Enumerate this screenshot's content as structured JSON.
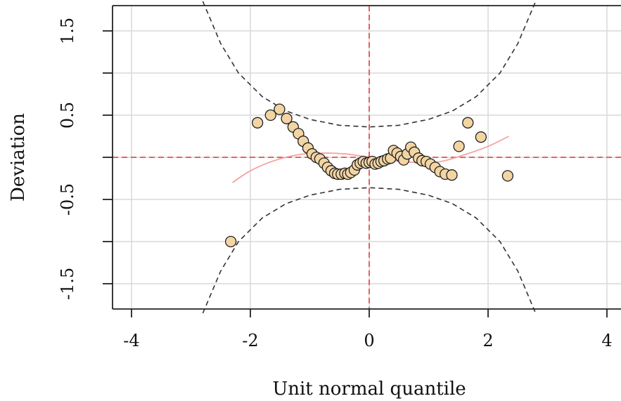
{
  "chart_data": {
    "type": "scatter",
    "title": "",
    "xlabel": "Unit normal quantile",
    "ylabel": "Deviation",
    "xlim": [
      -4,
      4
    ],
    "ylim": [
      -1.85,
      1.85
    ],
    "x_ticks": [
      -4,
      -2,
      0,
      2,
      4
    ],
    "x_tick_labels": [
      "-4",
      "-2",
      "0",
      "2",
      "4"
    ],
    "y_ticks": [
      -1.5,
      -0.5,
      0.5,
      1.5
    ],
    "y_tick_labels": [
      "-1.5",
      "-0.5",
      "0.5",
      "1.5"
    ],
    "y_gridlines": [
      -1.5,
      -1.0,
      -0.5,
      0.0,
      0.5,
      1.0,
      1.5
    ],
    "grid": true,
    "reference_line_y": 0,
    "reference_line_x": 0,
    "series": [
      {
        "values": [
          {
            "x": -2.33,
            "y": -1.0
          },
          {
            "x": -1.88,
            "y": 0.41
          },
          {
            "x": -1.66,
            "y": 0.5
          },
          {
            "x": -1.51,
            "y": 0.57
          },
          {
            "x": -1.39,
            "y": 0.46
          },
          {
            "x": -1.28,
            "y": 0.36
          },
          {
            "x": -1.19,
            "y": 0.28
          },
          {
            "x": -1.11,
            "y": 0.19
          },
          {
            "x": -1.03,
            "y": 0.11
          },
          {
            "x": -0.96,
            "y": 0.04
          },
          {
            "x": -0.89,
            "y": 0.0
          },
          {
            "x": -0.83,
            "y": -0.02
          },
          {
            "x": -0.76,
            "y": -0.07
          },
          {
            "x": -0.7,
            "y": -0.12
          },
          {
            "x": -0.64,
            "y": -0.16
          },
          {
            "x": -0.58,
            "y": -0.19
          },
          {
            "x": -0.53,
            "y": -0.2
          },
          {
            "x": -0.47,
            "y": -0.2
          },
          {
            "x": -0.41,
            "y": -0.19
          },
          {
            "x": -0.36,
            "y": -0.2
          },
          {
            "x": -0.31,
            "y": -0.18
          },
          {
            "x": -0.25,
            "y": -0.15
          },
          {
            "x": -0.2,
            "y": -0.09
          },
          {
            "x": -0.15,
            "y": -0.07
          },
          {
            "x": -0.1,
            "y": -0.05
          },
          {
            "x": -0.05,
            "y": -0.07
          },
          {
            "x": 0.0,
            "y": -0.06
          },
          {
            "x": 0.05,
            "y": -0.05
          },
          {
            "x": 0.1,
            "y": -0.08
          },
          {
            "x": 0.15,
            "y": -0.07
          },
          {
            "x": 0.2,
            "y": -0.05
          },
          {
            "x": 0.25,
            "y": -0.04
          },
          {
            "x": 0.31,
            "y": -0.02
          },
          {
            "x": 0.36,
            "y": -0.01
          },
          {
            "x": 0.41,
            "y": 0.08
          },
          {
            "x": 0.47,
            "y": 0.05
          },
          {
            "x": 0.53,
            "y": 0.01
          },
          {
            "x": 0.58,
            "y": -0.03
          },
          {
            "x": 0.64,
            "y": 0.04
          },
          {
            "x": 0.7,
            "y": 0.12
          },
          {
            "x": 0.76,
            "y": 0.06
          },
          {
            "x": 0.83,
            "y": -0.01
          },
          {
            "x": 0.89,
            "y": -0.04
          },
          {
            "x": 0.96,
            "y": -0.05
          },
          {
            "x": 1.03,
            "y": -0.08
          },
          {
            "x": 1.11,
            "y": -0.12
          },
          {
            "x": 1.19,
            "y": -0.17
          },
          {
            "x": 1.28,
            "y": -0.2
          },
          {
            "x": 1.39,
            "y": -0.21
          },
          {
            "x": 1.51,
            "y": 0.13
          },
          {
            "x": 1.66,
            "y": 0.41
          },
          {
            "x": 1.88,
            "y": 0.24
          },
          {
            "x": 2.33,
            "y": -0.22
          }
        ]
      }
    ],
    "smooth_curve": [
      {
        "x": -2.3,
        "y": -0.3
      },
      {
        "x": -2.0,
        "y": -0.16
      },
      {
        "x": -1.6,
        "y": -0.04
      },
      {
        "x": -1.2,
        "y": 0.03
      },
      {
        "x": -0.8,
        "y": 0.05
      },
      {
        "x": -0.4,
        "y": 0.04
      },
      {
        "x": 0.0,
        "y": 0.0
      },
      {
        "x": 0.4,
        "y": -0.04
      },
      {
        "x": 0.8,
        "y": -0.06
      },
      {
        "x": 1.2,
        "y": -0.05
      },
      {
        "x": 1.6,
        "y": 0.03
      },
      {
        "x": 2.0,
        "y": 0.13
      },
      {
        "x": 2.35,
        "y": 0.25
      }
    ],
    "confidence_band": {
      "upper": [
        {
          "x": -2.8,
          "y": 1.85
        },
        {
          "x": -2.5,
          "y": 1.35
        },
        {
          "x": -2.2,
          "y": 1.0
        },
        {
          "x": -1.8,
          "y": 0.72
        },
        {
          "x": -1.4,
          "y": 0.55
        },
        {
          "x": -1.0,
          "y": 0.45
        },
        {
          "x": -0.5,
          "y": 0.38
        },
        {
          "x": 0.0,
          "y": 0.36
        },
        {
          "x": 0.5,
          "y": 0.38
        },
        {
          "x": 1.0,
          "y": 0.45
        },
        {
          "x": 1.4,
          "y": 0.55
        },
        {
          "x": 1.8,
          "y": 0.72
        },
        {
          "x": 2.2,
          "y": 1.0
        },
        {
          "x": 2.5,
          "y": 1.35
        },
        {
          "x": 2.8,
          "y": 1.85
        }
      ],
      "lower": [
        {
          "x": -2.8,
          "y": -1.85
        },
        {
          "x": -2.5,
          "y": -1.35
        },
        {
          "x": -2.2,
          "y": -1.0
        },
        {
          "x": -1.8,
          "y": -0.72
        },
        {
          "x": -1.4,
          "y": -0.55
        },
        {
          "x": -1.0,
          "y": -0.45
        },
        {
          "x": -0.5,
          "y": -0.38
        },
        {
          "x": 0.0,
          "y": -0.36
        },
        {
          "x": 0.5,
          "y": -0.38
        },
        {
          "x": 1.0,
          "y": -0.45
        },
        {
          "x": 1.4,
          "y": -0.55
        },
        {
          "x": 1.8,
          "y": -0.72
        },
        {
          "x": 2.2,
          "y": -1.0
        },
        {
          "x": 2.5,
          "y": -1.35
        },
        {
          "x": 2.8,
          "y": -1.85
        }
      ]
    },
    "colors": {
      "point_fill": "#f3d5a3",
      "point_stroke": "#222222",
      "grid": "#d9d9d9",
      "reference": "#e8504c",
      "smooth": "#f4a3a0",
      "band": "#333333",
      "axis": "#222222"
    }
  }
}
